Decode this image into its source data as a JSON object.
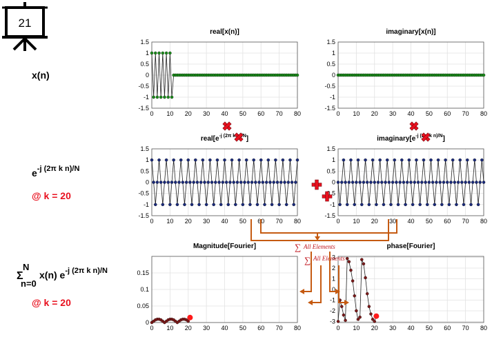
{
  "slide_number": "21",
  "labels": {
    "xn": "x(n)",
    "exp_base": "e",
    "exp_sup": "-j (2π k n)/N",
    "k1": "@ k = 20",
    "sum_sigma": "Σ",
    "sum_upper": "N",
    "sum_lower": "n=0",
    "sum_body": "x(n) e",
    "sum_sup": "-j (2π k n)/N",
    "k2": "@ k = 20"
  },
  "annotations": {
    "all_elements_1": "All Elements",
    "all_elements_2": "All Elements",
    "sigma": "∑"
  },
  "colors": {
    "green": "#1b8a1b",
    "navy": "#1a2a7a",
    "darkred": "#7a1a1a",
    "red": "#ff1a1a",
    "orange": "#c55a11",
    "accent_red": "#e8101e"
  },
  "chart_data": [
    {
      "id": "real_x",
      "type": "line",
      "title": "real[x(n)]",
      "marker_color": "#1b8a1b",
      "xlim": [
        0,
        80
      ],
      "ylim": [
        -1.5,
        1.5
      ],
      "xticks": [
        0,
        10,
        20,
        30,
        40,
        50,
        60,
        70,
        80
      ],
      "yticks": [
        1.5,
        1,
        0.5,
        0,
        -0.5,
        -1,
        -1.5
      ],
      "yticklabels": [
        "1.5",
        "1",
        "0.5",
        "0",
        "-0.5",
        "-1",
        "-1.5"
      ],
      "series": [
        {
          "x_start": 0,
          "x_end": 80,
          "values": [
            1,
            -1,
            1,
            -1,
            1,
            -1,
            1,
            -1,
            1,
            -1,
            1,
            -1,
            0,
            0,
            0,
            0,
            0,
            0,
            0,
            0,
            0,
            0,
            0,
            0,
            0,
            0,
            0,
            0,
            0,
            0,
            0,
            0,
            0,
            0,
            0,
            0,
            0,
            0,
            0,
            0,
            0,
            0,
            0,
            0,
            0,
            0,
            0,
            0,
            0,
            0,
            0,
            0,
            0,
            0,
            0,
            0,
            0,
            0,
            0,
            0,
            0,
            0,
            0,
            0,
            0,
            0,
            0,
            0,
            0,
            0,
            0,
            0,
            0,
            0,
            0,
            0,
            0,
            0,
            0,
            0,
            0
          ]
        }
      ]
    },
    {
      "id": "imag_x",
      "type": "line",
      "title": "imaginary[x(n)]",
      "marker_color": "#1b8a1b",
      "xlim": [
        0,
        80
      ],
      "ylim": [
        -1.5,
        1.5
      ],
      "xticks": [
        0,
        10,
        20,
        30,
        40,
        50,
        60,
        70,
        80
      ],
      "yticks": [
        1.5,
        1,
        0.5,
        0,
        -0.5,
        -1,
        -1.5
      ],
      "yticklabels": [
        "1.5",
        "1",
        "0.5",
        "0",
        "-0.5",
        "-1",
        "-1.5"
      ],
      "series": [
        {
          "x_start": 0,
          "x_end": 80,
          "constant": 0
        }
      ]
    },
    {
      "id": "real_exp",
      "type": "line",
      "title_prefix": "real[e",
      "title_sup": "-j (2π k n)/N",
      "title_suffix": "]",
      "marker_color": "#1a2a7a",
      "xlim": [
        0,
        80
      ],
      "ylim": [
        -1.5,
        1.5
      ],
      "xticks": [
        0,
        10,
        20,
        30,
        40,
        50,
        60,
        70,
        80
      ],
      "yticks": [
        1.5,
        1,
        0.5,
        0,
        -0.5,
        -1,
        -1.5
      ],
      "yticklabels": [
        "1.5",
        "1",
        "0.5",
        "0",
        "-0.5",
        "-1",
        "-1.5"
      ],
      "series": [
        {
          "x_start": 0,
          "x_end": 80,
          "pattern": [
            1,
            0,
            -1,
            0
          ]
        }
      ]
    },
    {
      "id": "imag_exp",
      "type": "line",
      "title_prefix": "imaginary[e",
      "title_sup": "-j (2π k n)/N",
      "title_suffix": "]",
      "marker_color": "#1a2a7a",
      "xlim": [
        0,
        80
      ],
      "ylim": [
        -1.5,
        1.5
      ],
      "xticks": [
        0,
        10,
        20,
        30,
        40,
        50,
        60,
        70,
        80
      ],
      "yticks": [
        1.5,
        1,
        0.5,
        0,
        -0.5,
        -1,
        -1.5
      ],
      "yticklabels": [
        "1.5",
        "1",
        "0.5",
        "0",
        "-0.5",
        "-1",
        "-1.5"
      ],
      "series": [
        {
          "x_start": 0,
          "x_end": 80,
          "pattern": [
            0,
            -1,
            0,
            1
          ]
        }
      ]
    },
    {
      "id": "magnitude",
      "type": "line",
      "title": "Magnitude[Fourier]",
      "marker_color": "#7a1a1a",
      "highlight_color": "#ff1a1a",
      "xlim": [
        0,
        80
      ],
      "ylim": [
        0,
        0.2
      ],
      "xticks": [
        0,
        10,
        20,
        30,
        40,
        50,
        60,
        70,
        80
      ],
      "yticks": [
        0,
        0.05,
        0.1,
        0.15
      ],
      "yticklabels": [
        "0",
        "0.05",
        "0.1",
        "0.15"
      ],
      "series": [
        {
          "x": [
            0,
            1,
            2,
            3,
            4,
            5,
            6,
            7,
            8,
            9,
            10,
            11,
            12,
            13,
            14,
            15,
            16,
            17,
            18,
            19,
            20,
            21
          ],
          "values": [
            0.0,
            0.004,
            0.008,
            0.01,
            0.01,
            0.008,
            0.004,
            0.0,
            0.004,
            0.008,
            0.01,
            0.01,
            0.008,
            0.004,
            0.0,
            0.004,
            0.008,
            0.01,
            0.01,
            0.008,
            0.004,
            0.015
          ]
        }
      ]
    },
    {
      "id": "phase",
      "type": "line",
      "title": "phase[Fourier]",
      "marker_color": "#7a1a1a",
      "highlight_color": "#ff1a1a",
      "xlim": [
        0,
        80
      ],
      "ylim": [
        -3.1,
        3.1
      ],
      "xticks": [
        0,
        10,
        20,
        30,
        40,
        50,
        60,
        70,
        80
      ],
      "yticks": [
        3,
        2,
        1,
        0,
        -1,
        -2,
        -3
      ],
      "yticklabels": [
        "3",
        "2",
        "1",
        "0",
        "-1",
        "-2",
        "-3"
      ],
      "series": [
        {
          "x": [
            0,
            1,
            2,
            3,
            4,
            5,
            6,
            7,
            8,
            9,
            10,
            11,
            12,
            13,
            14,
            15,
            16,
            17,
            18,
            19,
            20,
            21
          ],
          "values": [
            -3.0,
            -1.0,
            -1.6,
            -2.4,
            -2.9,
            2.9,
            2.6,
            1.8,
            0.8,
            -0.6,
            -2.0,
            -2.8,
            -2.6,
            2.8,
            2.4,
            1.1,
            -0.4,
            -1.6,
            -2.3,
            -2.8,
            -3.0,
            -2.5
          ]
        }
      ]
    }
  ]
}
